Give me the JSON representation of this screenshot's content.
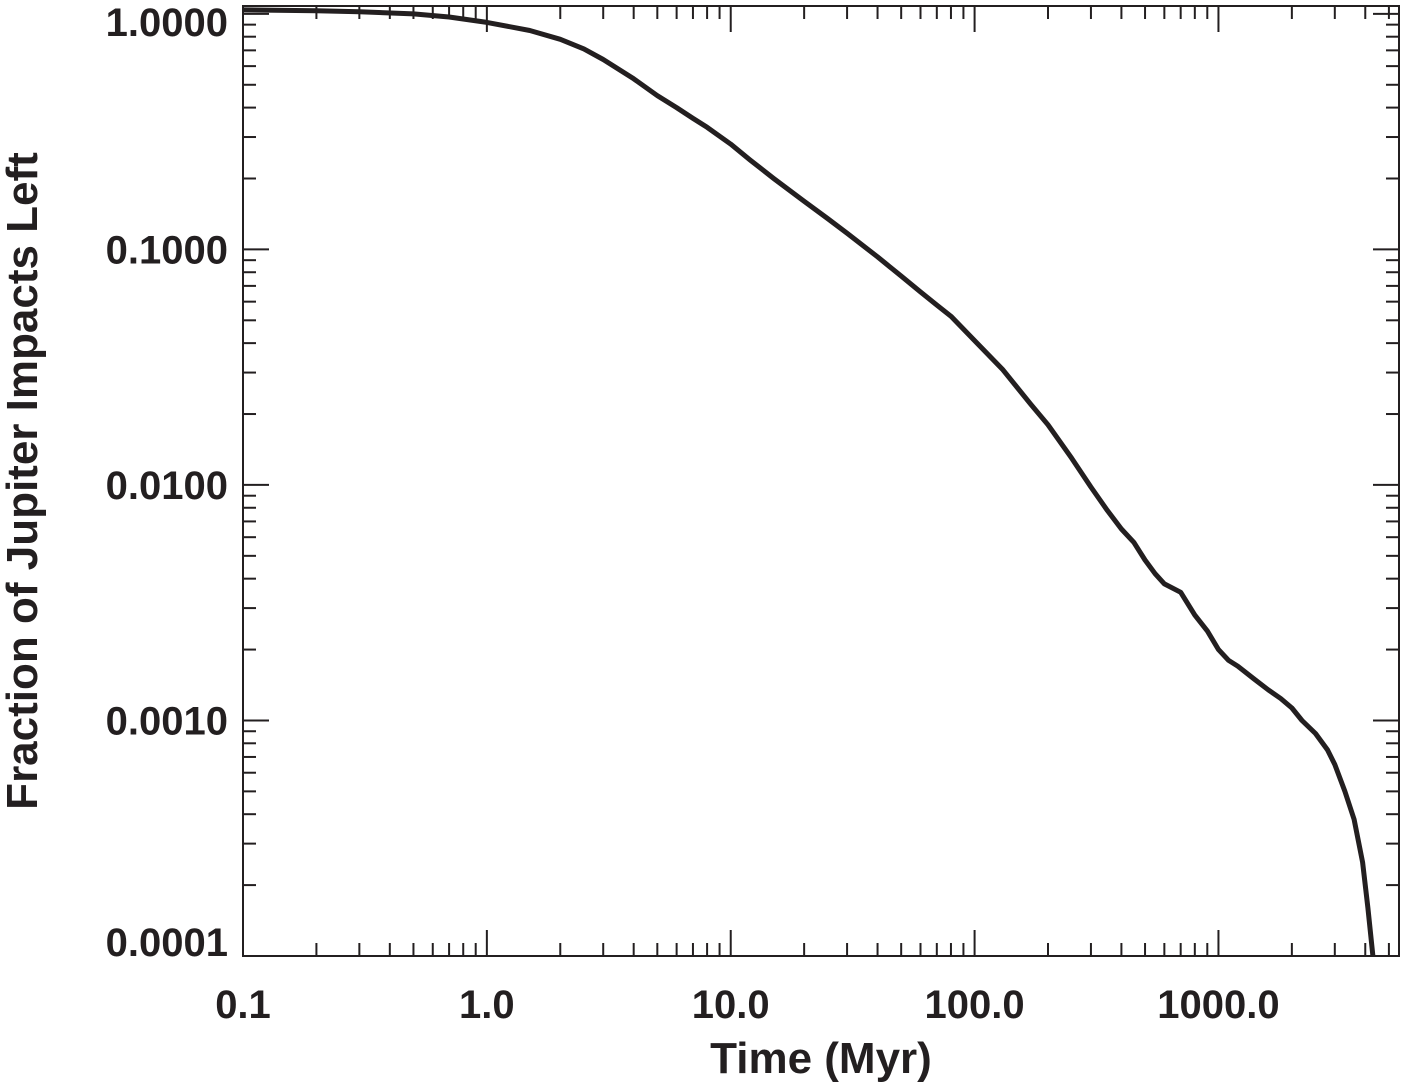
{
  "chart_data": {
    "type": "line",
    "title": "",
    "xlabel": "Time (Myr)",
    "ylabel": "Fraction of Jupiter Impacts Left",
    "xscale": "log",
    "yscale": "log",
    "xlim": [
      0.1,
      5500
    ],
    "ylim": [
      0.0001,
      1.08
    ],
    "grid": false,
    "legend": "none",
    "x_ticks": [
      0.1,
      1.0,
      10.0,
      100.0,
      1000.0
    ],
    "x_tick_labels": [
      "0.1",
      "1.0",
      "10.0",
      "100.0",
      "1000.0"
    ],
    "y_ticks": [
      1.0,
      0.1,
      0.01,
      0.001,
      0.0001
    ],
    "y_tick_labels": [
      "1.0000",
      "0.1000",
      "0.0100",
      "0.0010",
      "0.0001"
    ],
    "line_color": "#231f20",
    "series": [
      {
        "x": [
          0.1,
          0.2,
          0.3,
          0.5,
          0.7,
          1.0,
          1.5,
          2.0,
          2.5,
          3.0,
          4.0,
          5.0,
          6.0,
          7.0,
          8.0,
          10.0,
          12.0,
          15.0,
          20.0,
          25.0,
          30.0,
          40.0,
          50.0,
          60.0,
          70.0,
          80.0,
          100.0,
          130.0,
          170.0,
          200.0,
          250.0,
          300.0,
          350.0,
          400.0,
          450.0,
          500.0,
          550.0,
          600.0,
          700.0,
          800.0,
          900.0,
          1000.0,
          1100.0,
          1200.0,
          1400.0,
          1600.0,
          1800.0,
          2000.0,
          2200.0,
          2500.0,
          2800.0,
          3000.0,
          3300.0,
          3600.0,
          3900.0,
          4100.0,
          4300.0
        ],
        "y": [
          1.04,
          1.03,
          1.02,
          1.0,
          0.97,
          0.92,
          0.85,
          0.78,
          0.71,
          0.64,
          0.53,
          0.45,
          0.4,
          0.36,
          0.33,
          0.28,
          0.24,
          0.2,
          0.16,
          0.135,
          0.117,
          0.093,
          0.077,
          0.066,
          0.058,
          0.052,
          0.041,
          0.031,
          0.022,
          0.018,
          0.013,
          0.0098,
          0.0078,
          0.0065,
          0.0057,
          0.0048,
          0.0042,
          0.0038,
          0.0035,
          0.0028,
          0.0024,
          0.002,
          0.0018,
          0.0017,
          0.0015,
          0.00135,
          0.00124,
          0.00113,
          0.001,
          0.00088,
          0.00075,
          0.00065,
          0.0005,
          0.00038,
          0.00025,
          0.00016,
          0.0001
        ]
      }
    ]
  }
}
